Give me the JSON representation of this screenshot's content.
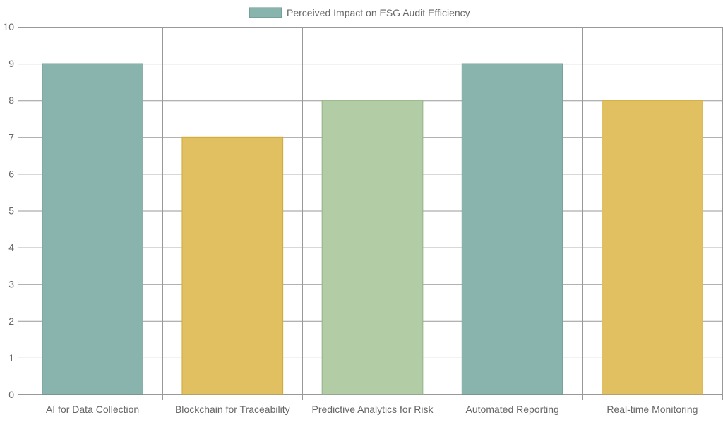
{
  "chart_data": {
    "type": "bar",
    "categories": [
      "AI for Data Collection",
      "Blockchain for Traceability",
      "Predictive Analytics for Risk",
      "Automated Reporting",
      "Real-time Monitoring"
    ],
    "series": [
      {
        "name": "Perceived Impact on ESG Audit Efficiency",
        "values": [
          9,
          7,
          8,
          9,
          8
        ]
      }
    ],
    "ylim": [
      0,
      10
    ],
    "yticks": [
      0,
      1,
      2,
      3,
      4,
      5,
      6,
      7,
      8,
      9,
      10
    ],
    "grid": true,
    "legend_position": "top-center",
    "bar_colors": [
      "#88b4ad",
      "#e0c060",
      "#b2cca5",
      "#88b4ad",
      "#e0c060"
    ],
    "bar_border_colors": [
      "#5f8f87",
      "#cfa93a",
      "#94b387",
      "#5f8f87",
      "#cfa93a"
    ],
    "legend_swatch_color": "#88b4ad",
    "legend_swatch_border": "#5f8f87",
    "grid_color": "#999999",
    "text_color": "#666666"
  }
}
